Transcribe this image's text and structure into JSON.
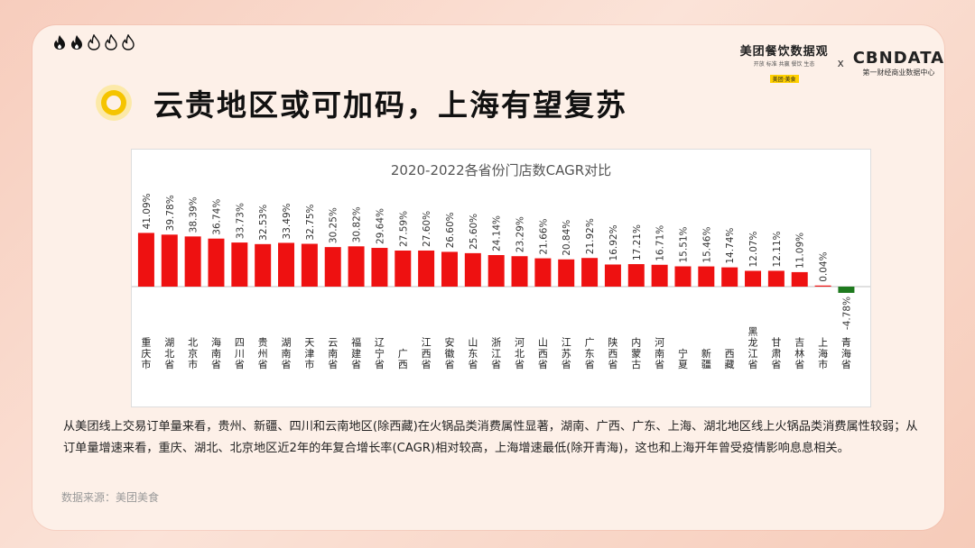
{
  "header": {
    "title": "云贵地区或可加码，上海有望复苏",
    "flame_level": "2/5"
  },
  "brand": {
    "meituan_name": "美团餐饮数据观",
    "meituan_sub": "开放 标准 共赢 餐饮 生态",
    "meituan_mini": "美团·美食",
    "x_mark": "x",
    "cbndata_name": "CBNDATA",
    "cbndata_sub": "第一财经商业数据中心"
  },
  "description": "从美团线上交易订单量来看，贵州、新疆、四川和云南地区(除西藏)在火锅品类消费属性显著，湖南、广西、广东、上海、湖北地区线上火锅品类消费属性较弱；从订单量增速来看，重庆、湖北、北京地区近2年的年复合增长率(CAGR)相对较高，上海增速最低(除开青海)，这也和上海开年曾受疫情影响息息相关。",
  "source": "数据来源：美团美食",
  "colors": {
    "positive": "#ee1111",
    "negative": "#1e7a1e",
    "accent": "#f5c400"
  },
  "chart_data": {
    "type": "bar",
    "title": "2020-2022各省份门店数CAGR对比",
    "xlabel": "",
    "ylabel": "",
    "categories": [
      "重庆市",
      "湖北省",
      "北京市",
      "海南省",
      "四川省",
      "贵州省",
      "湖南省",
      "天津市",
      "云南省",
      "福建省",
      "辽宁省",
      "广西",
      "江西省",
      "安徽省",
      "山东省",
      "浙江省",
      "河北省",
      "山西省",
      "江苏省",
      "广东省",
      "陕西省",
      "内蒙古",
      "河南省",
      "宁夏",
      "新疆",
      "西藏",
      "黑龙江省",
      "甘肃省",
      "吉林省",
      "上海市",
      "青海省"
    ],
    "values": [
      41.09,
      39.78,
      38.39,
      36.74,
      33.73,
      32.53,
      33.49,
      32.75,
      30.25,
      30.82,
      29.64,
      27.59,
      27.6,
      26.6,
      25.6,
      24.14,
      23.29,
      21.66,
      20.84,
      21.92,
      16.92,
      17.21,
      16.71,
      15.51,
      15.46,
      14.74,
      12.07,
      12.11,
      11.09,
      0.04,
      -4.78
    ],
    "labels": [
      "41.09%",
      "39.78%",
      "38.39%",
      "36.74%",
      "33.73%",
      "32.53%",
      "33.49%",
      "32.75%",
      "30.25%",
      "30.82%",
      "29.64%",
      "27.59%",
      "27.60%",
      "26.60%",
      "25.60%",
      "24.14%",
      "23.29%",
      "21.66%",
      "20.84%",
      "21.92%",
      "16.92%",
      "17.21%",
      "16.71%",
      "15.51%",
      "15.46%",
      "14.74%",
      "12.07%",
      "12.11%",
      "11.09%",
      "0.04%",
      "-4.78%"
    ],
    "ylim": [
      -20,
      80
    ],
    "grid": false,
    "legend": "none"
  }
}
